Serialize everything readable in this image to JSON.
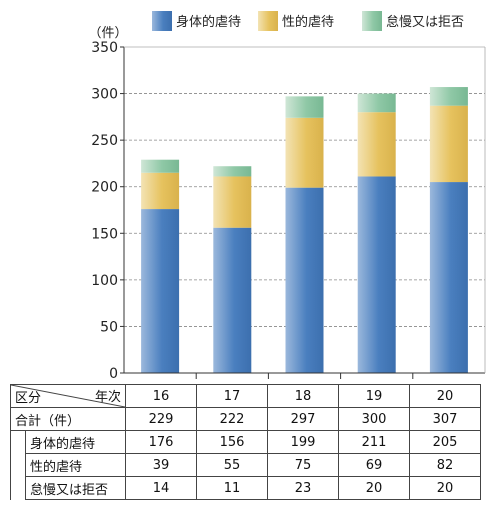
{
  "chart_data": {
    "type": "bar",
    "stacked": true,
    "categories": [
      "16",
      "17",
      "18",
      "19",
      "20"
    ],
    "series": [
      {
        "name": "身体的虐待",
        "values": [
          176,
          156,
          199,
          211,
          205
        ],
        "color": "#4a7fbf"
      },
      {
        "name": "性的虐待",
        "values": [
          39,
          55,
          75,
          69,
          82
        ],
        "color": "#e6c25e"
      },
      {
        "name": "怠慢又は拒否",
        "values": [
          14,
          11,
          23,
          20,
          20
        ],
        "color": "#8fc8a6"
      }
    ],
    "totals": [
      229,
      222,
      297,
      300,
      307
    ],
    "ylabel": "（件）",
    "ylim": [
      0,
      350
    ],
    "yticks": [
      0,
      50,
      100,
      150,
      200,
      250,
      300,
      350
    ],
    "grid": true,
    "legend": "top"
  },
  "table": {
    "corner_top": "年次",
    "corner_bottom": "区分",
    "total_label": "合計（件）"
  }
}
